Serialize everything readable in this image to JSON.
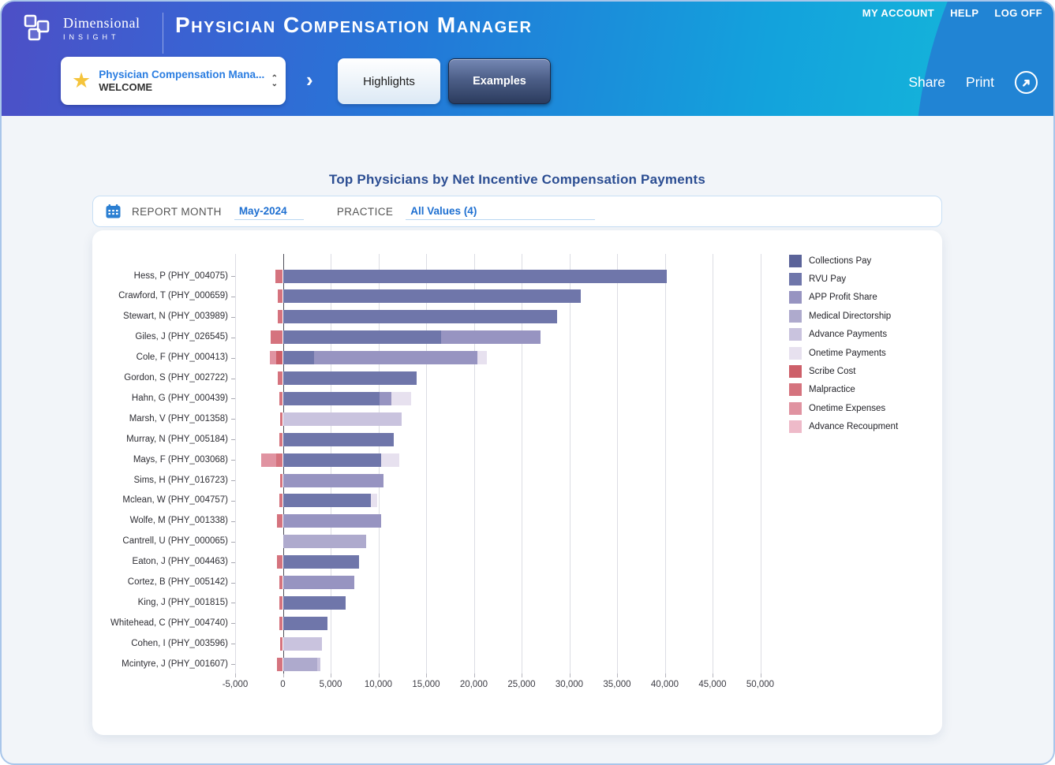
{
  "header": {
    "brand_line1": "Dimensional",
    "brand_line2": "INSIGHT",
    "app_title": "Physician Compensation Manager",
    "top_links": [
      "MY ACCOUNT",
      "HELP",
      "LOG OFF"
    ],
    "nav": {
      "dashboard_selector": {
        "title": "Physician Compensation Mana...",
        "subtitle": "WELCOME"
      },
      "separator_chevron": "›",
      "tabs": [
        {
          "label": "Highlights",
          "active": false
        },
        {
          "label": "Examples",
          "active": true
        }
      ],
      "share_label": "Share",
      "print_label": "Print"
    }
  },
  "filters": {
    "report_month_label": "REPORT MONTH",
    "report_month_value": "May-2024",
    "practice_label": "PRACTICE",
    "practice_value": "All Values (4)"
  },
  "chart_data": {
    "type": "bar",
    "orientation": "horizontal",
    "title": "Top Physicians by Net Incentive Compensation Payments",
    "xlabel": "",
    "ylabel": "",
    "xlim": [
      -5000,
      50000
    ],
    "x_ticks": [
      -5000,
      0,
      5000,
      10000,
      15000,
      20000,
      25000,
      30000,
      35000,
      40000,
      45000,
      50000
    ],
    "grid": true,
    "legend_position": "right",
    "legend": [
      {
        "key": "collections_pay",
        "label": "Collections Pay",
        "color": "#5b6399"
      },
      {
        "key": "rvu_pay",
        "label": "RVU Pay",
        "color": "#6f76aa"
      },
      {
        "key": "app_profit_share",
        "label": "APP Profit Share",
        "color": "#9794c1"
      },
      {
        "key": "medical_directorship",
        "label": "Medical Directorship",
        "color": "#aeaacd"
      },
      {
        "key": "advance_payments",
        "label": "Advance Payments",
        "color": "#c9c3de"
      },
      {
        "key": "onetime_payments",
        "label": "Onetime Payments",
        "color": "#e7e1ef"
      },
      {
        "key": "scribe_cost",
        "label": "Scribe Cost",
        "color": "#cd5f69"
      },
      {
        "key": "malpractice",
        "label": "Malpractice",
        "color": "#d5737e"
      },
      {
        "key": "onetime_expenses",
        "label": "Onetime Expenses",
        "color": "#e093a1"
      },
      {
        "key": "advance_recoupment",
        "label": "Advance Recoupment",
        "color": "#eebac9"
      }
    ],
    "rows": [
      {
        "label": "Hess, P (PHY_004075)",
        "segments": [
          [
            "malpractice",
            -800
          ],
          [
            "rvu_pay",
            40200
          ]
        ]
      },
      {
        "label": "Crawford, T (PHY_000659)",
        "segments": [
          [
            "malpractice",
            -500
          ],
          [
            "rvu_pay",
            31200
          ]
        ]
      },
      {
        "label": "Stewart, N (PHY_003989)",
        "segments": [
          [
            "malpractice",
            -500
          ],
          [
            "rvu_pay",
            28700
          ]
        ]
      },
      {
        "label": "Giles, J (PHY_026545)",
        "segments": [
          [
            "malpractice",
            -1300
          ],
          [
            "rvu_pay",
            16600
          ],
          [
            "app_profit_share",
            10400
          ]
        ]
      },
      {
        "label": "Cole, F (PHY_000413)",
        "segments": [
          [
            "onetime_expenses",
            -700
          ],
          [
            "scribe_cost",
            -700
          ],
          [
            "rvu_pay",
            3300
          ],
          [
            "app_profit_share",
            17100
          ],
          [
            "onetime_payments",
            1000
          ]
        ]
      },
      {
        "label": "Gordon, S (PHY_002722)",
        "segments": [
          [
            "malpractice",
            -500
          ],
          [
            "rvu_pay",
            14000
          ]
        ]
      },
      {
        "label": "Hahn, G (PHY_000439)",
        "segments": [
          [
            "malpractice",
            -400
          ],
          [
            "rvu_pay",
            10100
          ],
          [
            "app_profit_share",
            1300
          ],
          [
            "onetime_payments",
            2000
          ]
        ]
      },
      {
        "label": "Marsh, V (PHY_001358)",
        "segments": [
          [
            "malpractice",
            -300
          ],
          [
            "advance_payments",
            12400
          ]
        ]
      },
      {
        "label": "Murray, N (PHY_005184)",
        "segments": [
          [
            "malpractice",
            -400
          ],
          [
            "rvu_pay",
            11600
          ]
        ]
      },
      {
        "label": "Mays, F (PHY_003068)",
        "segments": [
          [
            "onetime_expenses",
            -1600
          ],
          [
            "malpractice",
            -700
          ],
          [
            "rvu_pay",
            10300
          ],
          [
            "onetime_payments",
            1900
          ]
        ]
      },
      {
        "label": "Sims, H (PHY_016723)",
        "segments": [
          [
            "malpractice",
            -300
          ],
          [
            "app_profit_share",
            10500
          ]
        ]
      },
      {
        "label": "Mclean, W (PHY_004757)",
        "segments": [
          [
            "malpractice",
            -400
          ],
          [
            "rvu_pay",
            9200
          ],
          [
            "onetime_payments",
            700
          ]
        ]
      },
      {
        "label": "Wolfe, M (PHY_001338)",
        "segments": [
          [
            "malpractice",
            -600
          ],
          [
            "app_profit_share",
            10300
          ]
        ]
      },
      {
        "label": "Cantrell, U (PHY_000065)",
        "segments": [
          [
            "medical_directorship",
            8700
          ]
        ]
      },
      {
        "label": "Eaton, J (PHY_004463)",
        "segments": [
          [
            "malpractice",
            -600
          ],
          [
            "rvu_pay",
            8000
          ]
        ]
      },
      {
        "label": "Cortez, B (PHY_005142)",
        "segments": [
          [
            "malpractice",
            -400
          ],
          [
            "app_profit_share",
            7500
          ]
        ]
      },
      {
        "label": "King, J (PHY_001815)",
        "segments": [
          [
            "malpractice",
            -400
          ],
          [
            "rvu_pay",
            6600
          ]
        ]
      },
      {
        "label": "Whitehead, C (PHY_004740)",
        "segments": [
          [
            "malpractice",
            -400
          ],
          [
            "rvu_pay",
            4700
          ]
        ]
      },
      {
        "label": "Cohen, I (PHY_003596)",
        "segments": [
          [
            "malpractice",
            -300
          ],
          [
            "advance_payments",
            4100
          ]
        ]
      },
      {
        "label": "Mcintyre, J (PHY_001607)",
        "segments": [
          [
            "malpractice",
            -600
          ],
          [
            "medical_directorship",
            3600
          ],
          [
            "advance_payments",
            300
          ]
        ]
      }
    ]
  }
}
